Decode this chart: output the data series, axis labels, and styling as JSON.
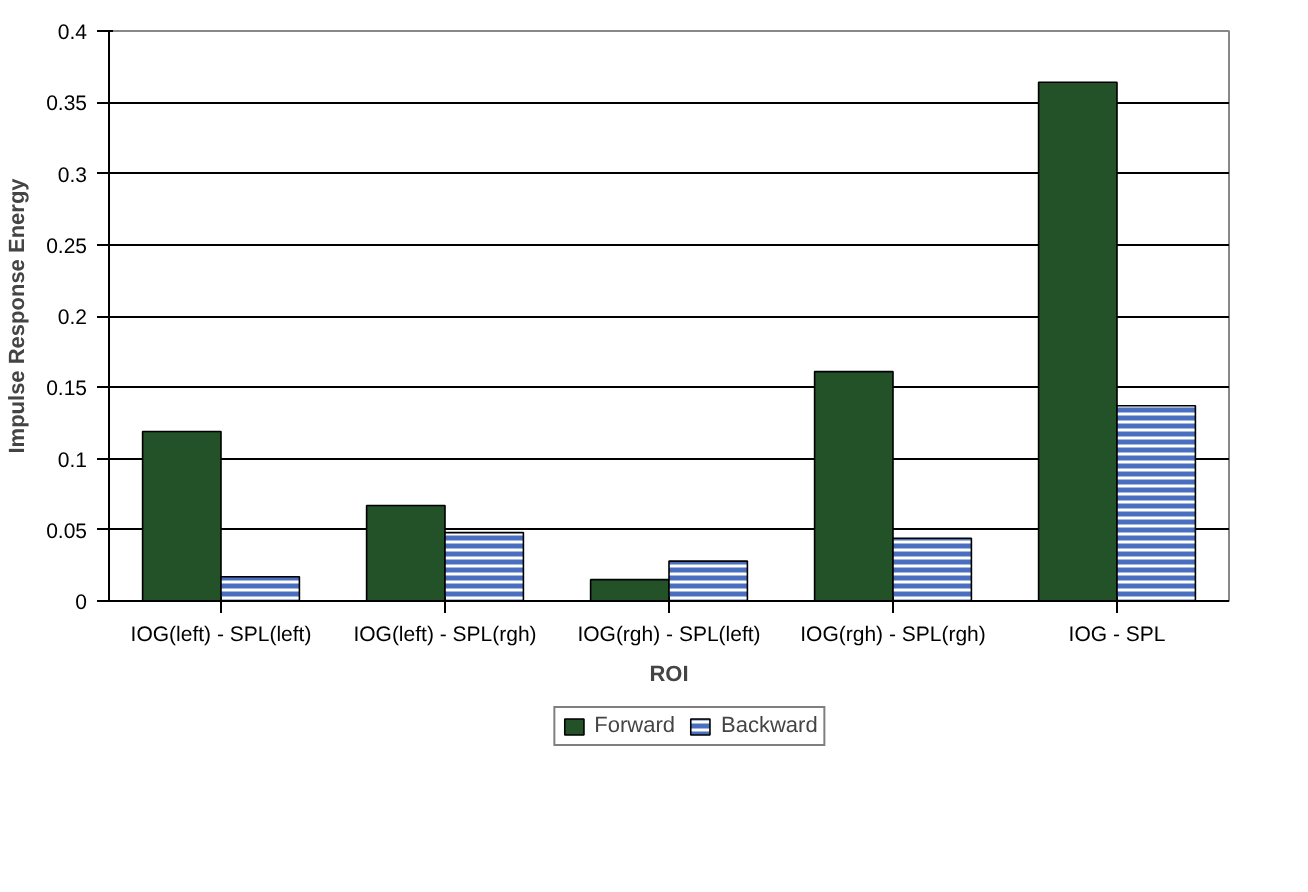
{
  "chart_data": {
    "type": "bar",
    "xlabel": "ROI",
    "ylabel": "Impulse Response Energy",
    "categories": [
      "IOG(left) - SPL(left)",
      "IOG(left) - SPL(rgh)",
      "IOG(rgh) - SPL(left)",
      "IOG(rgh) - SPL(rgh)",
      "IOG - SPL"
    ],
    "series": [
      {
        "name": "Forward",
        "color": "#235128",
        "values": [
          0.119,
          0.067,
          0.015,
          0.161,
          0.364
        ]
      },
      {
        "name": "Backward",
        "color": "#4a6fc0",
        "values": [
          0.017,
          0.048,
          0.028,
          0.044,
          0.137
        ]
      }
    ],
    "ylim": [
      0,
      0.4
    ],
    "yticks": [
      0,
      0.05,
      0.1,
      0.15,
      0.2,
      0.25,
      0.3,
      0.35,
      0.4
    ],
    "grid": "y",
    "legend": "bottom"
  }
}
